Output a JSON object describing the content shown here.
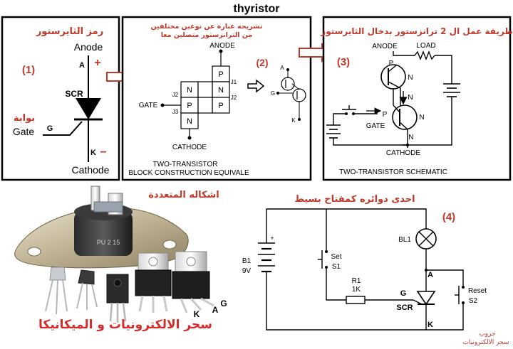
{
  "title": "thyristor",
  "panel1": {
    "heading": "رمز الثايرستور",
    "num": "(1)",
    "anode": "Anode",
    "a": "A",
    "plus": "+",
    "scr": "SCR",
    "gate_ar": "بوابة",
    "gate": "Gate",
    "g": "G",
    "k": "K",
    "minus": "−",
    "cathode": "Cathode"
  },
  "panel2": {
    "heading1": "تشريحه عبارة عن نوعين مختلفين",
    "heading2": "من الترانزستور متصلين معا",
    "anode": "ANODE",
    "gate": "GATE",
    "cathode": "CATHODE",
    "j1": "J1",
    "j2a": "J2",
    "j2b": "J2",
    "j3": "J3",
    "left_layers": [
      "N",
      "P",
      "N"
    ],
    "right_layers": [
      "P",
      "N",
      "P"
    ],
    "caption1": "TWO-TRANSISTOR",
    "caption2": "BLOCK CONSTRUCTION EQUIVALE",
    "num2": "(2)",
    "mini_a": "A",
    "mini_g": "G",
    "mini_k": "K"
  },
  "panel3": {
    "heading": "طريقة عمل ال 2 ترانزستور بدخال الثايرستور",
    "num": "(3)",
    "anode": "ANODE",
    "load": "LOAD",
    "gate": "GATE",
    "cathode": "CATHODE",
    "p1": "P",
    "n1": "N",
    "n2": "N",
    "p2": "P",
    "n3": "N",
    "n4": "N",
    "caption": "TWO-TRANSISTOR SCHEMATIC"
  },
  "panel4": {
    "heading": "اشكاله المتعددة",
    "k": "K",
    "a": "A",
    "g": "G",
    "part_label": "PU 2 15",
    "watermark": "سحر الالكترونيات و الميكانيكا"
  },
  "panel5": {
    "heading": "احدى دوائره كمفتاح بسيط",
    "num": "(4)",
    "b1": "B1",
    "v": "9V",
    "plus": "+",
    "set": "Set",
    "s1": "S1",
    "r1": "R1",
    "r_val": "1K",
    "bl1": "BL1",
    "a": "A",
    "g": "G",
    "scr": "SCR",
    "k": "K",
    "reset": "Reset",
    "s2": "S2",
    "credit1": "جروب",
    "credit2": "سحر الالكترونيات"
  }
}
